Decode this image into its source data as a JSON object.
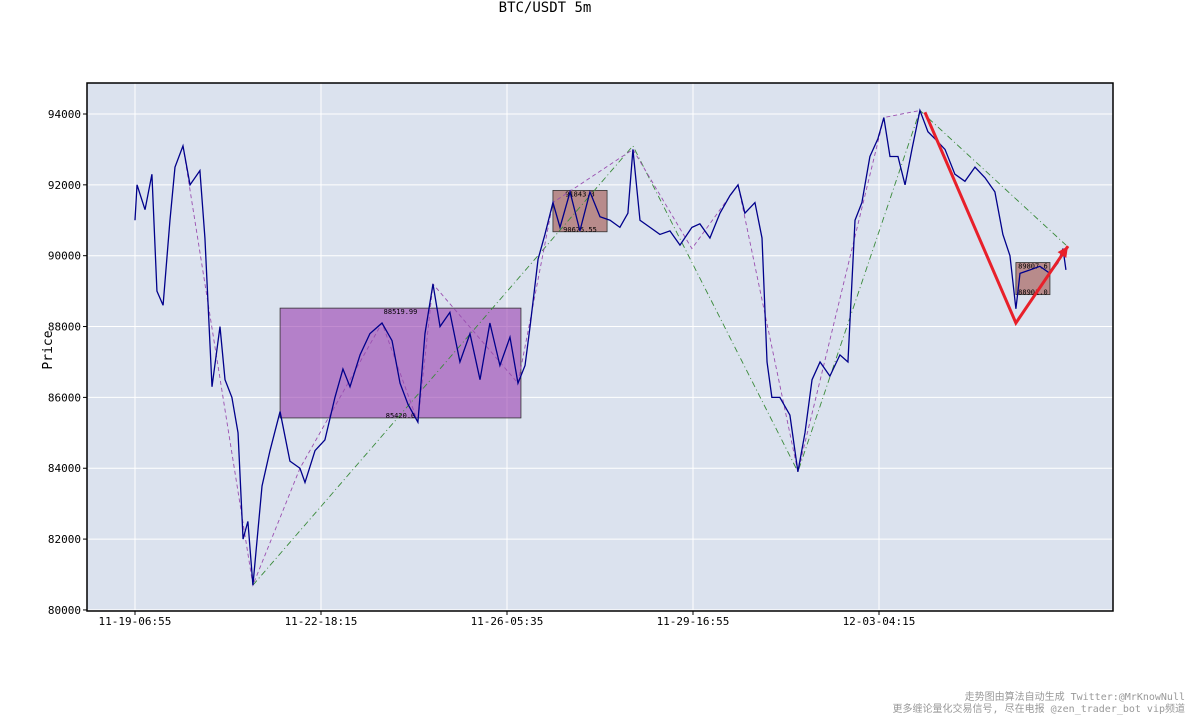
{
  "chart_data": {
    "type": "line",
    "title": "BTC/USDT 5m",
    "y_label": "Price",
    "xlim": [
      -258,
      5258
    ],
    "ylim": [
      79970,
      94875
    ],
    "xticks": [
      {
        "value": 0,
        "label": "11-19-06:55"
      },
      {
        "value": 1000,
        "label": "11-22-18:15"
      },
      {
        "value": 2000,
        "label": "11-26-05:35"
      },
      {
        "value": 3000,
        "label": "11-29-16:55"
      },
      {
        "value": 4000,
        "label": "12-03-04:15"
      }
    ],
    "yticks": [
      80000,
      82000,
      84000,
      86000,
      88000,
      90000,
      92000,
      94000
    ],
    "grid": true,
    "series": [
      {
        "style": "dashdot",
        "color": "#3a8a3a",
        "x": [
          634,
          2677,
          3564,
          4220,
          5005
        ],
        "values": [
          80700,
          93100,
          83900,
          94100,
          90300
        ]
      },
      {
        "style": "dashed",
        "color": "#9a4fb0",
        "x": [
          258,
          634,
          887,
          1328,
          1521,
          1602,
          2059,
          2247,
          2677,
          2994,
          3242,
          3564,
          4026,
          4220
        ],
        "values": [
          93100,
          80700,
          84000,
          88100,
          85300,
          89200,
          86400,
          91500,
          93000,
          90200,
          92000,
          83900,
          93900,
          94100
        ]
      },
      {
        "style": "solid",
        "color": "#00008b",
        "x": [
          0,
          11,
          54,
          91,
          118,
          151,
          188,
          215,
          258,
          296,
          349,
          376,
          414,
          457,
          484,
          521,
          554,
          581,
          607,
          634,
          683,
          726,
          780,
          833,
          887,
          914,
          968,
          1021,
          1075,
          1118,
          1156,
          1210,
          1263,
          1328,
          1382,
          1425,
          1468,
          1521,
          1559,
          1602,
          1640,
          1693,
          1747,
          1801,
          1855,
          1908,
          1962,
          2016,
          2059,
          2097,
          2124,
          2167,
          2204,
          2247,
          2285,
          2339,
          2392,
          2446,
          2500,
          2554,
          2607,
          2650,
          2677,
          2715,
          2769,
          2822,
          2876,
          2930,
          2994,
          3037,
          3091,
          3145,
          3199,
          3242,
          3279,
          3333,
          3371,
          3398,
          3424,
          3467,
          3521,
          3564,
          3602,
          3640,
          3683,
          3736,
          3790,
          3833,
          3871,
          3908,
          3951,
          3994,
          4026,
          4059,
          4102,
          4140,
          4177,
          4220,
          4263,
          4301,
          4355,
          4408,
          4462,
          4516,
          4570,
          4623,
          4666,
          4704,
          4736,
          4758,
          4812,
          4865,
          4919,
          4962,
          4989,
          5005
        ],
        "values": [
          91000,
          92000,
          91300,
          92300,
          89000,
          88600,
          91000,
          92500,
          93100,
          92000,
          92400,
          90500,
          86300,
          88000,
          86500,
          86000,
          85000,
          82000,
          82500,
          80700,
          83500,
          84500,
          85600,
          84200,
          84000,
          83600,
          84500,
          84800,
          86000,
          86800,
          86300,
          87200,
          87800,
          88100,
          87600,
          86400,
          85800,
          85300,
          87800,
          89200,
          88000,
          88400,
          87000,
          87800,
          86500,
          88100,
          86900,
          87700,
          86400,
          86900,
          88000,
          89900,
          90600,
          91500,
          90800,
          91800,
          90700,
          91800,
          91100,
          91000,
          90800,
          91200,
          93000,
          91000,
          90800,
          90600,
          90700,
          90300,
          90800,
          90900,
          90500,
          91200,
          91700,
          92000,
          91200,
          91500,
          90500,
          87000,
          86000,
          86000,
          85500,
          83900,
          85000,
          86500,
          87000,
          86600,
          87200,
          87000,
          91000,
          91500,
          92800,
          93300,
          93900,
          92800,
          92800,
          92000,
          93000,
          94100,
          93500,
          93300,
          93000,
          92300,
          92100,
          92500,
          92200,
          91800,
          90600,
          90000,
          88500,
          89500,
          89600,
          89700,
          89500,
          89800,
          90200,
          89600
        ]
      },
      {
        "style": "arrow",
        "color": "#e8202a",
        "x": [
          4247,
          4736,
          5016
        ],
        "values": [
          94050,
          88100,
          90270
        ]
      }
    ],
    "boxes": [
      {
        "color": "#9a3fb0",
        "x": [
          780,
          2075
        ],
        "high": 88519.99,
        "low": {
          "value": 85420,
          "label": "85420.0"
        }
      },
      {
        "color": "#a0524a",
        "x": [
          2247,
          2538
        ],
        "high": 91843.3,
        "low": 90675.55
      },
      {
        "color": "#a0524a",
        "x": [
          4736,
          4919
        ],
        "high": 89807.6,
        "low": {
          "value": 88901,
          "label": "88901.0"
        }
      }
    ]
  },
  "watermark": [
    "走势图由算法自动生成  Twitter:@MrKnowNull",
    "更多缠论量化交易信号, 尽在电报 @zen_trader_bot vip频道"
  ]
}
